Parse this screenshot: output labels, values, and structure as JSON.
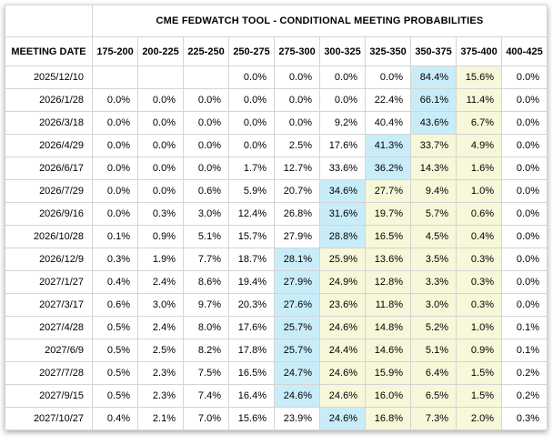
{
  "colors": {
    "highlight_blue": "#c9edf8",
    "highlight_yellow": "#f7f7d9",
    "grid_border": "#d4d4d4",
    "text": "#000000",
    "background": "#ffffff"
  },
  "chart_data": {
    "type": "table",
    "title": "CME FEDWATCH TOOL - CONDITIONAL MEETING PROBABILITIES",
    "row_header": "MEETING DATE",
    "corner_label": "",
    "rate_bins": [
      "175-200",
      "200-225",
      "225-250",
      "250-275",
      "275-300",
      "300-325",
      "325-350",
      "350-375",
      "375-400",
      "400-425"
    ],
    "rows": [
      {
        "date": "2025/12/10",
        "values": [
          "",
          "",
          "",
          "0.0%",
          "0.0%",
          "0.0%",
          "0.0%",
          "84.4%",
          "15.6%",
          "0.0%"
        ],
        "marks": [
          "",
          "",
          "",
          "",
          "",
          "",
          "",
          "blue",
          "yellow",
          ""
        ]
      },
      {
        "date": "2026/1/28",
        "values": [
          "0.0%",
          "0.0%",
          "0.0%",
          "0.0%",
          "0.0%",
          "0.0%",
          "22.4%",
          "66.1%",
          "11.4%",
          "0.0%"
        ],
        "marks": [
          "",
          "",
          "",
          "",
          "",
          "",
          "",
          "blue",
          "yellow",
          ""
        ]
      },
      {
        "date": "2026/3/18",
        "values": [
          "0.0%",
          "0.0%",
          "0.0%",
          "0.0%",
          "0.0%",
          "9.2%",
          "40.4%",
          "43.6%",
          "6.7%",
          "0.0%"
        ],
        "marks": [
          "",
          "",
          "",
          "",
          "",
          "",
          "",
          "blue",
          "yellow",
          ""
        ]
      },
      {
        "date": "2026/4/29",
        "values": [
          "0.0%",
          "0.0%",
          "0.0%",
          "0.0%",
          "2.5%",
          "17.6%",
          "41.3%",
          "33.7%",
          "4.9%",
          "0.0%"
        ],
        "marks": [
          "",
          "",
          "",
          "",
          "",
          "",
          "blue",
          "yellow",
          "yellow",
          ""
        ]
      },
      {
        "date": "2026/6/17",
        "values": [
          "0.0%",
          "0.0%",
          "0.0%",
          "1.7%",
          "12.7%",
          "33.6%",
          "36.2%",
          "14.3%",
          "1.6%",
          "0.0%"
        ],
        "marks": [
          "",
          "",
          "",
          "",
          "",
          "",
          "blue",
          "yellow",
          "yellow",
          ""
        ]
      },
      {
        "date": "2026/7/29",
        "values": [
          "0.0%",
          "0.0%",
          "0.6%",
          "5.9%",
          "20.7%",
          "34.6%",
          "27.7%",
          "9.4%",
          "1.0%",
          "0.0%"
        ],
        "marks": [
          "",
          "",
          "",
          "",
          "",
          "blue",
          "yellow",
          "yellow",
          "yellow",
          ""
        ]
      },
      {
        "date": "2026/9/16",
        "values": [
          "0.0%",
          "0.3%",
          "3.0%",
          "12.4%",
          "26.8%",
          "31.6%",
          "19.7%",
          "5.7%",
          "0.6%",
          "0.0%"
        ],
        "marks": [
          "",
          "",
          "",
          "",
          "",
          "blue",
          "yellow",
          "yellow",
          "yellow",
          ""
        ]
      },
      {
        "date": "2026/10/28",
        "values": [
          "0.1%",
          "0.9%",
          "5.1%",
          "15.7%",
          "27.9%",
          "28.8%",
          "16.5%",
          "4.5%",
          "0.4%",
          "0.0%"
        ],
        "marks": [
          "",
          "",
          "",
          "",
          "",
          "blue",
          "yellow",
          "yellow",
          "yellow",
          ""
        ]
      },
      {
        "date": "2026/12/9",
        "values": [
          "0.3%",
          "1.9%",
          "7.7%",
          "18.7%",
          "28.1%",
          "25.9%",
          "13.6%",
          "3.5%",
          "0.3%",
          "0.0%"
        ],
        "marks": [
          "",
          "",
          "",
          "",
          "blue",
          "yellow",
          "yellow",
          "yellow",
          "yellow",
          ""
        ]
      },
      {
        "date": "2027/1/27",
        "values": [
          "0.4%",
          "2.4%",
          "8.6%",
          "19.4%",
          "27.9%",
          "24.9%",
          "12.8%",
          "3.3%",
          "0.3%",
          "0.0%"
        ],
        "marks": [
          "",
          "",
          "",
          "",
          "blue",
          "yellow",
          "yellow",
          "yellow",
          "yellow",
          ""
        ]
      },
      {
        "date": "2027/3/17",
        "values": [
          "0.6%",
          "3.0%",
          "9.7%",
          "20.3%",
          "27.6%",
          "23.6%",
          "11.8%",
          "3.0%",
          "0.3%",
          "0.0%"
        ],
        "marks": [
          "",
          "",
          "",
          "",
          "blue",
          "yellow",
          "yellow",
          "yellow",
          "yellow",
          ""
        ]
      },
      {
        "date": "2027/4/28",
        "values": [
          "0.5%",
          "2.4%",
          "8.0%",
          "17.6%",
          "25.7%",
          "24.6%",
          "14.8%",
          "5.2%",
          "1.0%",
          "0.1%"
        ],
        "marks": [
          "",
          "",
          "",
          "",
          "blue",
          "yellow",
          "yellow",
          "yellow",
          "yellow",
          ""
        ]
      },
      {
        "date": "2027/6/9",
        "values": [
          "0.5%",
          "2.5%",
          "8.2%",
          "17.8%",
          "25.7%",
          "24.4%",
          "14.6%",
          "5.1%",
          "0.9%",
          "0.1%"
        ],
        "marks": [
          "",
          "",
          "",
          "",
          "blue",
          "yellow",
          "yellow",
          "yellow",
          "yellow",
          ""
        ]
      },
      {
        "date": "2027/7/28",
        "values": [
          "0.5%",
          "2.3%",
          "7.5%",
          "16.5%",
          "24.7%",
          "24.6%",
          "15.9%",
          "6.4%",
          "1.5%",
          "0.2%"
        ],
        "marks": [
          "",
          "",
          "",
          "",
          "blue",
          "yellow",
          "yellow",
          "yellow",
          "yellow",
          ""
        ]
      },
      {
        "date": "2027/9/15",
        "values": [
          "0.5%",
          "2.3%",
          "7.4%",
          "16.4%",
          "24.6%",
          "24.6%",
          "16.0%",
          "6.5%",
          "1.5%",
          "0.2%"
        ],
        "marks": [
          "",
          "",
          "",
          "",
          "blue",
          "yellow",
          "yellow",
          "yellow",
          "yellow",
          ""
        ]
      },
      {
        "date": "2027/10/27",
        "values": [
          "0.4%",
          "2.1%",
          "7.0%",
          "15.6%",
          "23.9%",
          "24.6%",
          "16.8%",
          "7.3%",
          "2.0%",
          "0.3%"
        ],
        "marks": [
          "",
          "",
          "",
          "",
          "",
          "blue",
          "yellow",
          "yellow",
          "yellow",
          ""
        ]
      }
    ]
  }
}
